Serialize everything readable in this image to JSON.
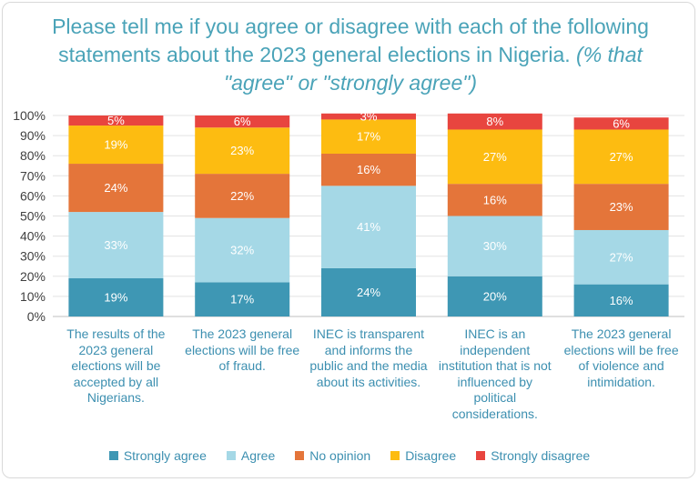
{
  "title": {
    "main": "Please tell me if you agree or disagree with each of the following statements about the 2023 general elections in Nigeria.",
    "note": "(% that \"agree\" or \"strongly agree\")"
  },
  "chart_data": {
    "type": "bar",
    "stacked": true,
    "orientation": "vertical",
    "ylim": [
      0,
      100
    ],
    "yticks": [
      "0%",
      "10%",
      "20%",
      "30%",
      "40%",
      "50%",
      "60%",
      "70%",
      "80%",
      "90%",
      "100%"
    ],
    "categories": [
      "The results of the 2023 general elections will be accepted by all Nigerians.",
      "The 2023 general elections will be free of fraud.",
      "INEC is transparent and informs the public and the media about its activities.",
      "INEC is an independent institution that is not influenced by political considerations.",
      "The 2023 general elections will be free of violence and intimidation."
    ],
    "series": [
      {
        "name": "Strongly agree",
        "color": "#3e97b4",
        "values": [
          19,
          17,
          24,
          20,
          16
        ]
      },
      {
        "name": "Agree",
        "color": "#a5d8e6",
        "values": [
          33,
          32,
          41,
          30,
          27
        ]
      },
      {
        "name": "No opinion",
        "color": "#e4753a",
        "values": [
          24,
          22,
          16,
          16,
          23
        ]
      },
      {
        "name": "Disagree",
        "color": "#fdbc11",
        "values": [
          19,
          23,
          17,
          27,
          27
        ]
      },
      {
        "name": "Strongly disagree",
        "color": "#e8453f",
        "values": [
          5,
          6,
          3,
          8,
          6
        ]
      }
    ],
    "legend_position": "bottom"
  }
}
